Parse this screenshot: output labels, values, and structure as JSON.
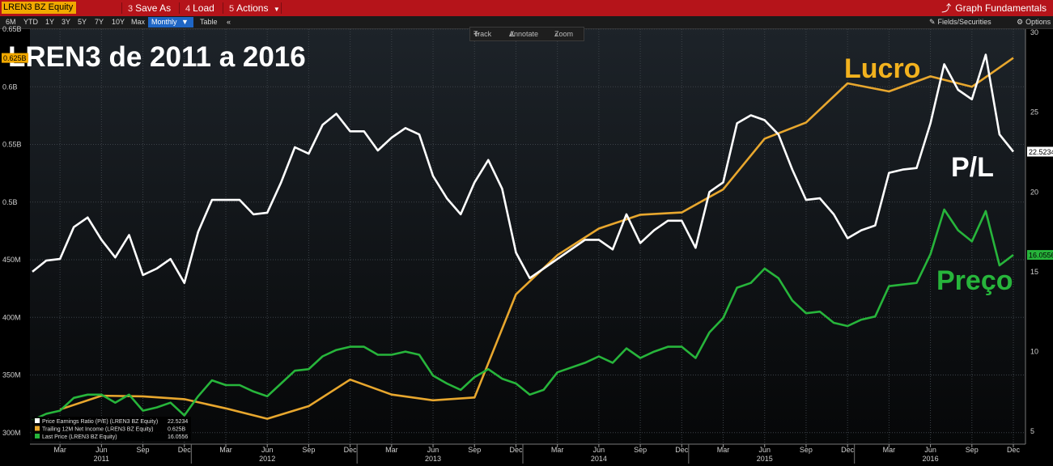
{
  "toolbar": {
    "ticker": "LREN3 BZ Equity",
    "buttons": [
      {
        "num": "3",
        "label": "Save As"
      },
      {
        "num": "4",
        "label": "Load"
      },
      {
        "num": "5",
        "label": "Actions"
      }
    ],
    "graph_fundamentals": "Graph Fundamentals"
  },
  "range_bar": {
    "ranges": [
      "6M",
      "YTD",
      "1Y",
      "3Y",
      "5Y",
      "7Y",
      "10Y",
      "Max"
    ],
    "frequency": "Monthly",
    "table": "Table",
    "collapse": "«",
    "fields_securities": "Fields/Securities",
    "options": "Options"
  },
  "tools": {
    "track": "Track",
    "annotate": "Annotate",
    "zoom": "Zoom"
  },
  "colors": {
    "pe": "#ffffff",
    "income": "#e8a72e",
    "price": "#27b53b",
    "background": "#000000",
    "toolbar": "#b5141a",
    "ticker_bg": "#f2a900"
  },
  "chart_data": {
    "type": "line",
    "title": "LREN3 de 2011 a 2016",
    "annotations": [
      {
        "text": "Lucro",
        "color": "#f2b21e"
      },
      {
        "text": "P/L",
        "color": "#ffffff"
      },
      {
        "text": "Preço",
        "color": "#27b53b"
      }
    ],
    "x_ticks": [
      "Mar",
      "Jun",
      "Sep",
      "Dec",
      "Mar",
      "Jun",
      "Sep",
      "Dec",
      "Mar",
      "Jun",
      "Sep",
      "Dec",
      "Mar",
      "Jun",
      "Sep",
      "Dec",
      "Mar",
      "Jun",
      "Sep",
      "Dec",
      "Mar",
      "Jun",
      "Sep",
      "Dec"
    ],
    "x_years": [
      "2011",
      "2012",
      "2013",
      "2014",
      "2015",
      "2016"
    ],
    "x_range": [
      "2011-01",
      "2016-12"
    ],
    "left_axis": {
      "ticks": [
        "0.65B",
        "0.6B",
        "0.55B",
        "0.5B",
        "450M",
        "400M",
        "350M",
        "300M"
      ],
      "ylim": [
        0.29,
        0.65
      ],
      "unit": "B"
    },
    "right_axis": {
      "ticks": [
        "30",
        "25",
        "20",
        "15",
        "10",
        "5"
      ],
      "ylim": [
        4.2,
        30.2
      ]
    },
    "last_value_tags": [
      {
        "text": "0.625B",
        "axis": "left",
        "value": 0.625,
        "color": "#f2a900",
        "text_color": "#000000"
      },
      {
        "text": "22.5234",
        "axis": "right",
        "value": 22.5234,
        "color": "#ffffff",
        "text_color": "#000000"
      },
      {
        "text": "16.0556",
        "axis": "right",
        "value": 16.0556,
        "color": "#27b53b",
        "text_color": "#000000"
      }
    ],
    "legend": {
      "position": "bottom-left",
      "entries": [
        {
          "label": "Price Earnings Ratio (P/E) (LREN3 BZ Equity)",
          "value": "22.5234",
          "color": "#ffffff"
        },
        {
          "label": "Trailing 12M Net Income (LREN3 BZ Equity)",
          "value": "0.625B",
          "color": "#e8a72e"
        },
        {
          "label": "Last Price (LREN3 BZ Equity)",
          "value": "16.0556",
          "color": "#27b53b"
        }
      ]
    },
    "series": [
      {
        "name": "Price Earnings Ratio (P/E) (LREN3 BZ Equity)",
        "axis": "right",
        "color": "#ffffff",
        "points": [
          [
            "2011-01",
            15.0
          ],
          [
            "2011-02",
            15.7
          ],
          [
            "2011-03",
            15.8
          ],
          [
            "2011-04",
            17.8
          ],
          [
            "2011-05",
            18.4
          ],
          [
            "2011-06",
            17.0
          ],
          [
            "2011-07",
            15.9
          ],
          [
            "2011-08",
            17.3
          ],
          [
            "2011-09",
            14.8
          ],
          [
            "2011-10",
            15.2
          ],
          [
            "2011-11",
            15.8
          ],
          [
            "2011-12",
            14.3
          ],
          [
            "2012-01",
            17.5
          ],
          [
            "2012-02",
            19.5
          ],
          [
            "2012-03",
            19.5
          ],
          [
            "2012-04",
            19.5
          ],
          [
            "2012-05",
            18.6
          ],
          [
            "2012-06",
            18.7
          ],
          [
            "2012-07",
            20.6
          ],
          [
            "2012-08",
            22.8
          ],
          [
            "2012-09",
            22.4
          ],
          [
            "2012-10",
            24.2
          ],
          [
            "2012-11",
            24.9
          ],
          [
            "2012-12",
            23.8
          ],
          [
            "2013-01",
            23.8
          ],
          [
            "2013-02",
            22.6
          ],
          [
            "2013-03",
            23.4
          ],
          [
            "2013-04",
            24.0
          ],
          [
            "2013-05",
            23.6
          ],
          [
            "2013-06",
            21.0
          ],
          [
            "2013-07",
            19.6
          ],
          [
            "2013-08",
            18.6
          ],
          [
            "2013-09",
            20.6
          ],
          [
            "2013-10",
            22.0
          ],
          [
            "2013-11",
            20.2
          ],
          [
            "2013-12",
            16.2
          ],
          [
            "2014-01",
            14.6
          ],
          [
            "2014-02",
            15.2
          ],
          [
            "2014-03",
            15.8
          ],
          [
            "2014-04",
            16.4
          ],
          [
            "2014-05",
            17.0
          ],
          [
            "2014-06",
            17.0
          ],
          [
            "2014-07",
            16.4
          ],
          [
            "2014-08",
            18.6
          ],
          [
            "2014-09",
            16.8
          ],
          [
            "2014-10",
            17.6
          ],
          [
            "2014-11",
            18.2
          ],
          [
            "2014-12",
            18.2
          ],
          [
            "2015-01",
            16.5
          ],
          [
            "2015-02",
            20.0
          ],
          [
            "2015-03",
            20.6
          ],
          [
            "2015-04",
            24.3
          ],
          [
            "2015-05",
            24.8
          ],
          [
            "2015-06",
            24.5
          ],
          [
            "2015-07",
            23.6
          ],
          [
            "2015-08",
            21.4
          ],
          [
            "2015-09",
            19.5
          ],
          [
            "2015-10",
            19.6
          ],
          [
            "2015-11",
            18.6
          ],
          [
            "2015-12",
            17.1
          ],
          [
            "2016-01",
            17.6
          ],
          [
            "2016-02",
            17.9
          ],
          [
            "2016-03",
            21.2
          ],
          [
            "2016-04",
            21.4
          ],
          [
            "2016-05",
            21.5
          ],
          [
            "2016-06",
            24.3
          ],
          [
            "2016-07",
            28.0
          ],
          [
            "2016-08",
            26.4
          ],
          [
            "2016-09",
            25.8
          ],
          [
            "2016-10",
            28.6
          ],
          [
            "2016-11",
            23.6
          ],
          [
            "2016-12",
            22.5234
          ]
        ]
      },
      {
        "name": "Trailing 12M Net Income (LREN3 BZ Equity)",
        "axis": "left",
        "color": "#e8a72e",
        "points": [
          [
            "2011-03",
            0.32
          ],
          [
            "2011-06",
            0.332
          ],
          [
            "2011-09",
            0.3315
          ],
          [
            "2011-12",
            0.329
          ],
          [
            "2012-03",
            0.321
          ],
          [
            "2012-06",
            0.312
          ],
          [
            "2012-09",
            0.323
          ],
          [
            "2012-12",
            0.346
          ],
          [
            "2013-03",
            0.333
          ],
          [
            "2013-06",
            0.328
          ],
          [
            "2013-09",
            0.3305
          ],
          [
            "2013-12",
            0.42
          ],
          [
            "2014-03",
            0.454
          ],
          [
            "2014-06",
            0.477
          ],
          [
            "2014-09",
            0.489
          ],
          [
            "2014-12",
            0.491
          ],
          [
            "2015-03",
            0.511
          ],
          [
            "2015-06",
            0.555
          ],
          [
            "2015-09",
            0.569
          ],
          [
            "2015-12",
            0.603
          ],
          [
            "2016-03",
            0.596
          ],
          [
            "2016-06",
            0.609
          ],
          [
            "2016-09",
            0.6
          ],
          [
            "2016-12",
            0.625
          ]
        ]
      },
      {
        "name": "Last Price (LREN3 BZ Equity)",
        "axis": "right",
        "color": "#27b53b",
        "points": [
          [
            "2011-01",
            5.7
          ],
          [
            "2011-02",
            6.1
          ],
          [
            "2011-03",
            6.3
          ],
          [
            "2011-04",
            7.1
          ],
          [
            "2011-05",
            7.3
          ],
          [
            "2011-06",
            7.3
          ],
          [
            "2011-07",
            6.8
          ],
          [
            "2011-08",
            7.3
          ],
          [
            "2011-09",
            6.3
          ],
          [
            "2011-10",
            6.5
          ],
          [
            "2011-11",
            6.8
          ],
          [
            "2011-12",
            6.0
          ],
          [
            "2012-01",
            7.2
          ],
          [
            "2012-02",
            8.2
          ],
          [
            "2012-03",
            7.9
          ],
          [
            "2012-04",
            7.9
          ],
          [
            "2012-05",
            7.5
          ],
          [
            "2012-06",
            7.2
          ],
          [
            "2012-07",
            8.0
          ],
          [
            "2012-08",
            8.8
          ],
          [
            "2012-09",
            8.9
          ],
          [
            "2012-10",
            9.7
          ],
          [
            "2012-11",
            10.1
          ],
          [
            "2012-12",
            10.3
          ],
          [
            "2013-01",
            10.3
          ],
          [
            "2013-02",
            9.8
          ],
          [
            "2013-03",
            9.8
          ],
          [
            "2013-04",
            10.0
          ],
          [
            "2013-05",
            9.8
          ],
          [
            "2013-06",
            8.5
          ],
          [
            "2013-07",
            8.0
          ],
          [
            "2013-08",
            7.6
          ],
          [
            "2013-09",
            8.4
          ],
          [
            "2013-10",
            8.9
          ],
          [
            "2013-11",
            8.3
          ],
          [
            "2013-12",
            8.0
          ],
          [
            "2014-01",
            7.3
          ],
          [
            "2014-02",
            7.6
          ],
          [
            "2014-03",
            8.7
          ],
          [
            "2014-04",
            9.0
          ],
          [
            "2014-05",
            9.3
          ],
          [
            "2014-06",
            9.7
          ],
          [
            "2014-07",
            9.3
          ],
          [
            "2014-08",
            10.2
          ],
          [
            "2014-09",
            9.6
          ],
          [
            "2014-10",
            10.0
          ],
          [
            "2014-11",
            10.3
          ],
          [
            "2014-12",
            10.3
          ],
          [
            "2015-01",
            9.6
          ],
          [
            "2015-02",
            11.2
          ],
          [
            "2015-03",
            12.1
          ],
          [
            "2015-04",
            14.0
          ],
          [
            "2015-05",
            14.3
          ],
          [
            "2015-06",
            15.2
          ],
          [
            "2015-07",
            14.6
          ],
          [
            "2015-08",
            13.2
          ],
          [
            "2015-09",
            12.4
          ],
          [
            "2015-10",
            12.5
          ],
          [
            "2015-11",
            11.8
          ],
          [
            "2015-12",
            11.6
          ],
          [
            "2016-01",
            12.0
          ],
          [
            "2016-02",
            12.2
          ],
          [
            "2016-03",
            14.1
          ],
          [
            "2016-04",
            14.2
          ],
          [
            "2016-05",
            14.3
          ],
          [
            "2016-06",
            16.1
          ],
          [
            "2016-07",
            18.9
          ],
          [
            "2016-08",
            17.6
          ],
          [
            "2016-09",
            16.9
          ],
          [
            "2016-10",
            18.8
          ],
          [
            "2016-11",
            15.4
          ],
          [
            "2016-12",
            16.0556
          ]
        ]
      }
    ]
  }
}
